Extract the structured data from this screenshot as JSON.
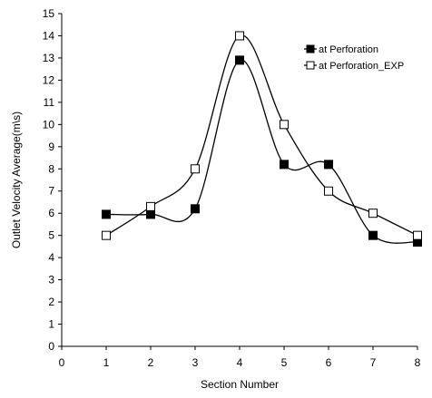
{
  "chart_data": {
    "type": "line",
    "smooth": true,
    "title": "",
    "xlabel": "Section Number",
    "ylabel": "Outlet Velocity  Average(m\\s)",
    "xlim": [
      0,
      8
    ],
    "ylim": [
      0,
      15
    ],
    "xticks": [
      "0",
      "1",
      "2",
      "3",
      "4",
      "5",
      "6",
      "7",
      "8"
    ],
    "yticks": [
      "0",
      "1",
      "2",
      "3",
      "4",
      "5",
      "6",
      "7",
      "8",
      "9",
      "10",
      "11",
      "12",
      "13",
      "14",
      "15"
    ],
    "grid": false,
    "legend_position": "top-right",
    "x": [
      1,
      2,
      3,
      4,
      5,
      6,
      7,
      8
    ],
    "series": [
      {
        "name": "at Perforation",
        "marker": "filled-square",
        "color": "#000000",
        "values": [
          5.95,
          5.95,
          6.2,
          12.9,
          8.2,
          8.2,
          5.0,
          4.7
        ]
      },
      {
        "name": "at Perforation_EXP",
        "marker": "open-square",
        "color": "#000000",
        "values": [
          5.0,
          6.3,
          8.0,
          14.0,
          10.0,
          7.0,
          6.0,
          5.0
        ]
      }
    ]
  }
}
